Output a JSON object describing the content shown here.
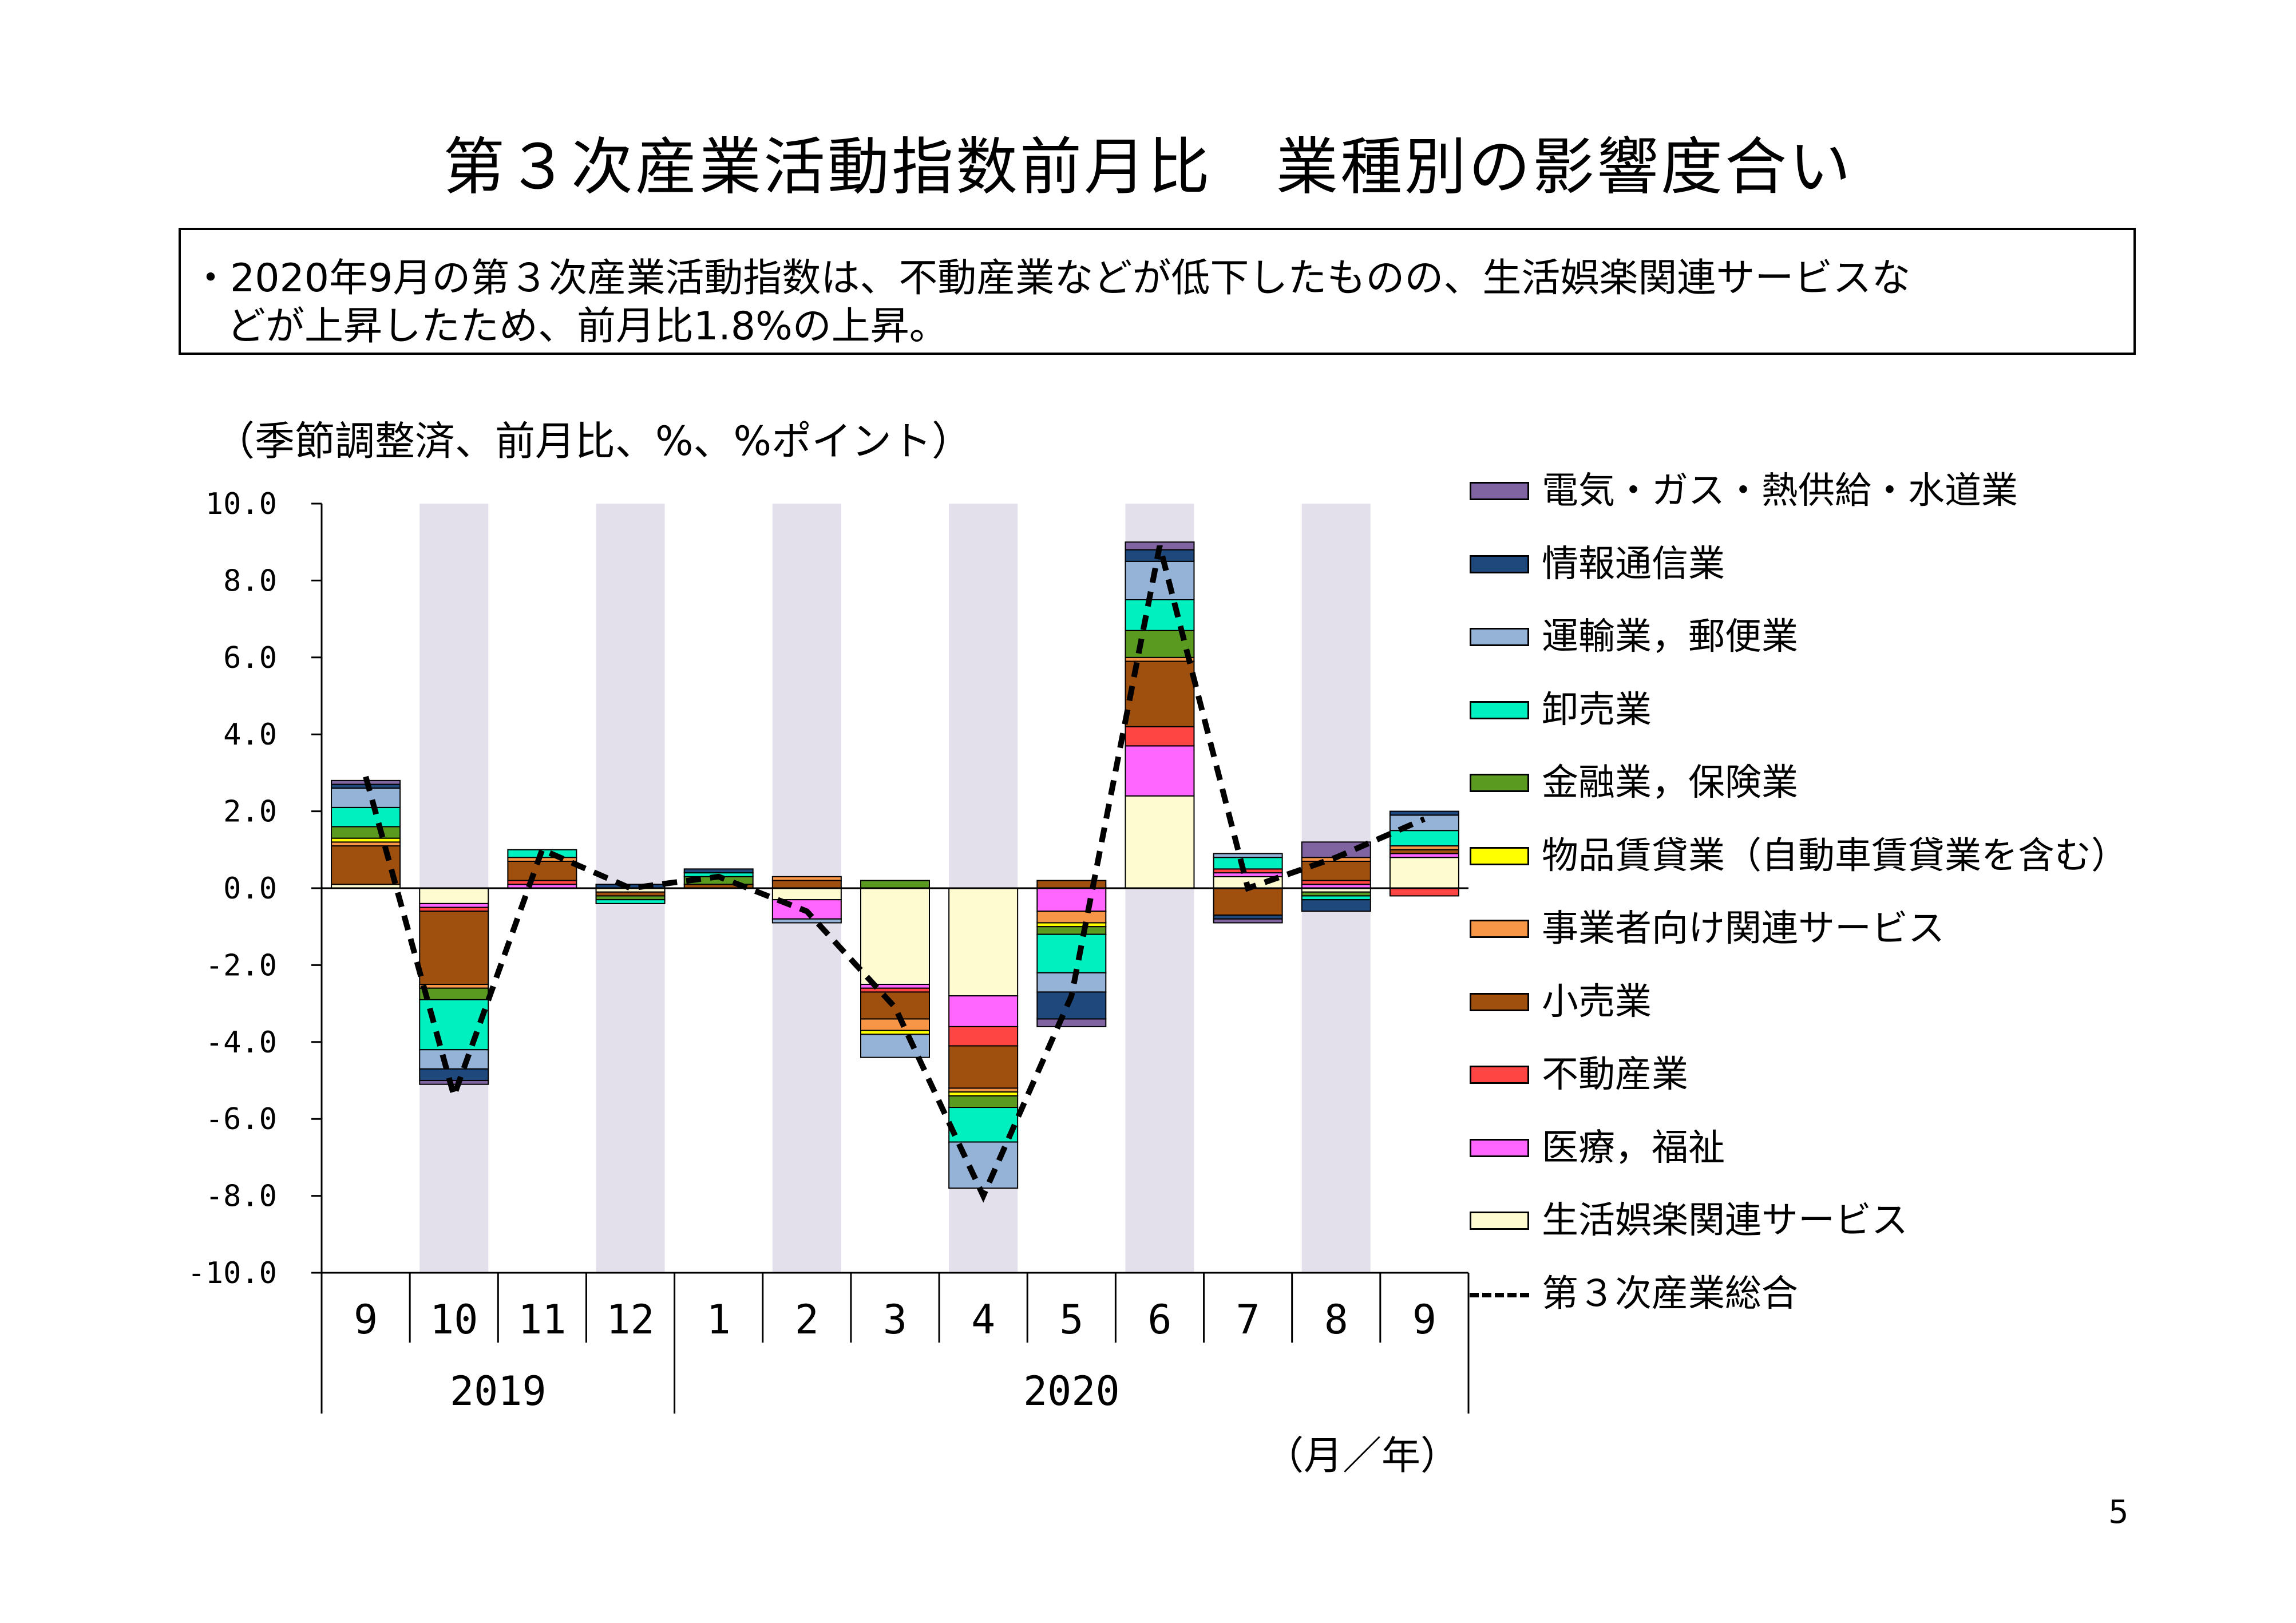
{
  "title": "第３次産業活動指数前月比　業種別の影響度合い",
  "summary": {
    "line1": "・2020年9月の第３次産業活動指数は、不動産業などが低下したものの、生活娯楽関連サービスな",
    "line2": "どが上昇したため、前月比1.8%の上昇。"
  },
  "unit_note": "（季節調整済、前月比、%、%ポイント）",
  "x_unit_note": "（月／年）",
  "page_number": "5",
  "chart_data": {
    "type": "bar",
    "stacked": true,
    "ylim": [
      -10,
      10
    ],
    "yticks": [
      "10.0",
      "8.0",
      "6.0",
      "4.0",
      "2.0",
      "0.0",
      "-2.0",
      "-4.0",
      "-6.0",
      "-8.0",
      "-10.0"
    ],
    "categories": [
      "9",
      "10",
      "11",
      "12",
      "1",
      "2",
      "3",
      "4",
      "5",
      "6",
      "7",
      "8",
      "9"
    ],
    "years": [
      {
        "label": "2019",
        "start": 0,
        "end": 3
      },
      {
        "label": "2020",
        "start": 4,
        "end": 12
      }
    ],
    "shaded_categories": [
      1,
      3,
      5,
      7,
      9,
      11
    ],
    "shade_color": "#e3e0ec",
    "legend_position": "right",
    "series": [
      {
        "name": "生活娯楽関連サービス",
        "color": "#fffbd0",
        "values": [
          0.1,
          -0.4,
          0.0,
          -0.1,
          0.0,
          -0.3,
          -2.5,
          -2.8,
          0.0,
          2.4,
          0.3,
          -0.1,
          0.8
        ]
      },
      {
        "name": "医療，福祉",
        "color": "#ff66ff",
        "values": [
          0.0,
          -0.1,
          0.1,
          0.0,
          0.0,
          -0.5,
          -0.1,
          -0.8,
          -0.6,
          1.3,
          0.1,
          0.1,
          0.1
        ]
      },
      {
        "name": "不動産業",
        "color": "#ff4444",
        "values": [
          0.0,
          -0.1,
          0.1,
          0.0,
          0.0,
          0.0,
          -0.1,
          -0.5,
          0.0,
          0.5,
          0.1,
          0.1,
          -0.2
        ]
      },
      {
        "name": "小売業",
        "color": "#a0500e",
        "values": [
          1.0,
          -1.9,
          0.5,
          -0.1,
          0.1,
          0.2,
          -0.7,
          -1.1,
          0.2,
          1.7,
          -0.7,
          0.5,
          0.1
        ]
      },
      {
        "name": "事業者向け関連サービス",
        "color": "#f79646",
        "values": [
          0.1,
          -0.1,
          0.1,
          0.0,
          0.0,
          0.1,
          -0.3,
          -0.1,
          -0.3,
          0.1,
          0.0,
          0.1,
          0.1
        ]
      },
      {
        "name": "物品賃貸業（自動車賃貸業を含む）",
        "color": "#ffff00",
        "values": [
          0.1,
          0.0,
          0.0,
          0.0,
          0.0,
          0.0,
          -0.1,
          -0.1,
          -0.1,
          0.0,
          0.0,
          0.0,
          0.0
        ]
      },
      {
        "name": "金融業，保険業",
        "color": "#5a9a20",
        "values": [
          0.3,
          -0.3,
          0.0,
          -0.1,
          0.2,
          0.0,
          0.2,
          -0.3,
          -0.2,
          0.7,
          0.0,
          -0.1,
          0.0
        ]
      },
      {
        "name": "卸売業",
        "color": "#00f0c0",
        "values": [
          0.5,
          -1.3,
          0.2,
          -0.1,
          0.1,
          0.0,
          0.0,
          -0.9,
          -1.0,
          0.8,
          0.3,
          -0.1,
          0.4
        ]
      },
      {
        "name": "運輸業，郵便業",
        "color": "#95b3d7",
        "values": [
          0.5,
          -0.5,
          0.0,
          0.0,
          0.0,
          -0.1,
          -0.6,
          -1.2,
          -0.5,
          1.0,
          0.1,
          0.0,
          0.4
        ]
      },
      {
        "name": "情報通信業",
        "color": "#1f497d",
        "values": [
          0.1,
          -0.3,
          0.0,
          0.1,
          0.1,
          0.0,
          0.0,
          0.0,
          -0.7,
          0.3,
          -0.1,
          -0.3,
          0.1
        ]
      },
      {
        "name": "電気・ガス・熱供給・水道業",
        "color": "#8064a2",
        "values": [
          0.1,
          -0.1,
          0.0,
          0.0,
          0.0,
          0.0,
          0.0,
          0.0,
          -0.2,
          0.2,
          -0.1,
          0.4,
          0.0
        ]
      }
    ],
    "line_series": {
      "name": "第３次産業総合",
      "values": [
        2.9,
        -5.4,
        1.0,
        0.0,
        0.3,
        -0.6,
        -3.1,
        -8.0,
        -2.8,
        8.9,
        0.0,
        0.8,
        1.8
      ]
    }
  }
}
